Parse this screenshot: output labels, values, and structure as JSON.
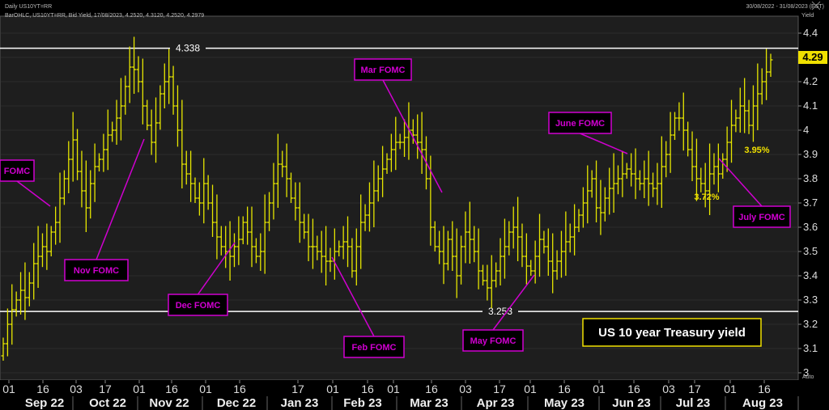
{
  "header": {
    "title": "Daily US10YT=RR",
    "range": "30/08/2022 - 31/08/2023 (EST)",
    "legend": "BarOHLC, US10YT=RR, Bid Yield, 17/08/2023, 4.2520, 4.3120, 4.2520, 4.2979",
    "axis_title": "Yield",
    "auto_label": "Auto"
  },
  "chart_data": {
    "type": "bar",
    "title": "US 10 year Treasury yield",
    "xlabel": "",
    "ylabel": "Yield",
    "ylim": [
      2.97,
      4.47
    ],
    "y_ticks": [
      "4.4",
      "4.3",
      "4.2",
      "4.1",
      "4",
      "3.9",
      "3.8",
      "3.7",
      "3.6",
      "3.5",
      "3.4",
      "3.3",
      "3.2",
      "3.1",
      "3"
    ],
    "x_ticks": [
      "01",
      "16",
      "03",
      "17",
      "01",
      "16",
      "01",
      "16",
      "17",
      "01",
      "16",
      "01",
      "16",
      "03",
      "17",
      "01",
      "16",
      "01",
      "16",
      "03",
      "17",
      "01",
      "16"
    ],
    "months": [
      "Sep 22",
      "Oct 22",
      "Nov 22",
      "Dec 22",
      "Jan 23",
      "Feb 23",
      "Mar 23",
      "Apr 23",
      "May 23",
      "Jun 23",
      "Jul 23",
      "Aug 23"
    ],
    "last_value": "4.29",
    "levels": [
      {
        "label": "4.338",
        "value": 4.338
      },
      {
        "label": "3.253",
        "value": 3.253
      }
    ],
    "annotations": [
      {
        "label": "FOMC",
        "value": 3.61
      },
      {
        "label": "Nov FOMC",
        "value": 3.95
      },
      {
        "label": "Dec FOMC",
        "value": 3.48
      },
      {
        "label": "Feb FOMC",
        "value": 3.38
      },
      {
        "label": "Mar FOMC",
        "value": 3.7
      },
      {
        "label": "May FOMC",
        "value": 3.32
      },
      {
        "label": "June FOMC",
        "value": 3.85
      },
      {
        "label": "July FOMC",
        "value": 3.86
      }
    ],
    "value_labels": [
      "3.95%",
      "3.72%"
    ],
    "series": [
      {
        "values": [
          3.12,
          3.2,
          3.26,
          3.3,
          3.34,
          3.31,
          3.37,
          3.45,
          3.48,
          3.52,
          3.5,
          3.58,
          3.62,
          3.72,
          3.8,
          3.88,
          3.96,
          3.83,
          3.75,
          3.68,
          3.78,
          3.85,
          3.88,
          3.92,
          3.98,
          4.0,
          4.05,
          4.1,
          4.18,
          4.26,
          4.25,
          4.2,
          4.1,
          4.02,
          3.95,
          4.03,
          4.15,
          4.2,
          4.22,
          4.1,
          4.0,
          3.86,
          3.82,
          3.78,
          3.72,
          3.7,
          3.78,
          3.7,
          3.62,
          3.56,
          3.52,
          3.5,
          3.48,
          3.52,
          3.55,
          3.62,
          3.58,
          3.52,
          3.48,
          3.5,
          3.62,
          3.7,
          3.78,
          3.86,
          3.85,
          3.8,
          3.72,
          3.68,
          3.62,
          3.58,
          3.52,
          3.52,
          3.5,
          3.48,
          3.46,
          3.46,
          3.5,
          3.52,
          3.54,
          3.52,
          3.42,
          3.52,
          3.62,
          3.65,
          3.7,
          3.75,
          3.8,
          3.84,
          3.88,
          3.92,
          3.95,
          3.95,
          3.97,
          4.0,
          3.98,
          3.95,
          3.92,
          3.8,
          3.6,
          3.52,
          3.5,
          3.45,
          3.55,
          3.48,
          3.4,
          3.52,
          3.58,
          3.55,
          3.5,
          3.42,
          3.38,
          3.35,
          3.38,
          3.42,
          3.48,
          3.52,
          3.58,
          3.6,
          3.56,
          3.48,
          3.44,
          3.42,
          3.48,
          3.55,
          3.52,
          3.46,
          3.42,
          3.46,
          3.5,
          3.54,
          3.56,
          3.6,
          3.65,
          3.7,
          3.75,
          3.8,
          3.68,
          3.66,
          3.72,
          3.76,
          3.78,
          3.8,
          3.82,
          3.84,
          3.82,
          3.8,
          3.78,
          3.8,
          3.78,
          3.76,
          3.78,
          3.85,
          3.9,
          3.98,
          4.05,
          4.05,
          4.0,
          3.92,
          3.85,
          3.8,
          3.78,
          3.75,
          3.82,
          3.85,
          3.82,
          3.88,
          3.95,
          4.02,
          4.05,
          4.1,
          4.08,
          4.02,
          4.1,
          4.15,
          4.2,
          4.24,
          4.29
        ]
      }
    ]
  },
  "colors": {
    "bars": "#e6e600",
    "annotation": "#d000d0",
    "background": "#000000",
    "level_line": "#ffffff"
  }
}
